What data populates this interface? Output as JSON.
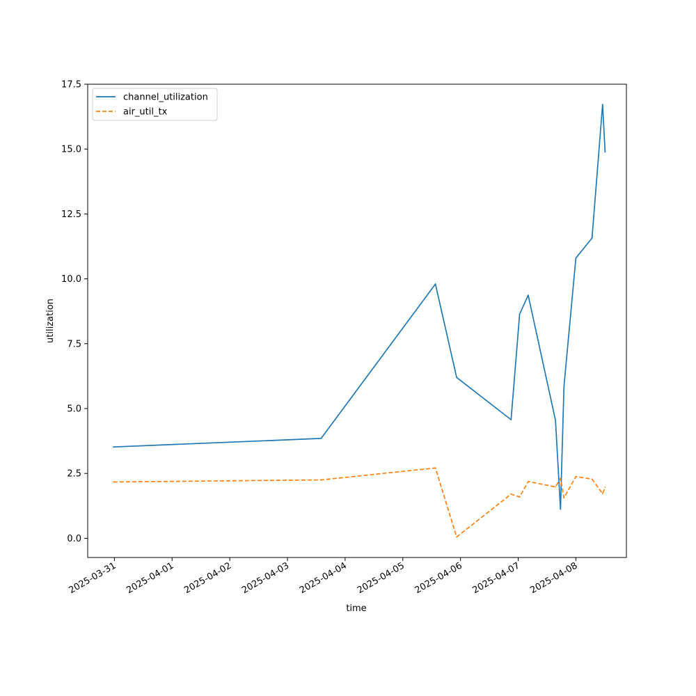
{
  "chart_data": {
    "type": "line",
    "xlabel": "time",
    "ylabel": "utilization",
    "x_range": [
      "2025-03-30 12:53",
      "2025-04-08 21:02"
    ],
    "ylim": [
      -0.74,
      17.5
    ],
    "x_ticks": [
      "2025-03-31",
      "2025-04-01",
      "2025-04-02",
      "2025-04-03",
      "2025-04-04",
      "2025-04-05",
      "2025-04-06",
      "2025-04-07",
      "2025-04-08"
    ],
    "y_ticks": [
      "0.0",
      "2.5",
      "5.0",
      "7.5",
      "10.0",
      "12.5",
      "15.0",
      "17.5"
    ],
    "grid": false,
    "legend_position": "top-left",
    "series": [
      {
        "name": "channel_utilization",
        "color": "#1f77b4",
        "style": "solid",
        "points": [
          {
            "x": "2025-03-30 23:34",
            "y": 3.52
          },
          {
            "x": "2025-04-03 14:01",
            "y": 3.85
          },
          {
            "x": "2025-04-05 13:34",
            "y": 9.8
          },
          {
            "x": "2025-04-05 22:24",
            "y": 6.2
          },
          {
            "x": "2025-04-06 21:02",
            "y": 4.57
          },
          {
            "x": "2025-04-07 00:36",
            "y": 8.64
          },
          {
            "x": "2025-04-07 04:10",
            "y": 9.37
          },
          {
            "x": "2025-04-07 15:32",
            "y": 4.55
          },
          {
            "x": "2025-04-07 17:37",
            "y": 1.12
          },
          {
            "x": "2025-04-07 19:04",
            "y": 5.85
          },
          {
            "x": "2025-04-08 00:00",
            "y": 10.8
          },
          {
            "x": "2025-04-08 06:43",
            "y": 11.57
          },
          {
            "x": "2025-04-08 11:07",
            "y": 16.72
          },
          {
            "x": "2025-04-08 12:11",
            "y": 14.89
          }
        ]
      },
      {
        "name": "air_util_tx",
        "color": "#ff7f0e",
        "style": "dashed",
        "points": [
          {
            "x": "2025-03-30 23:34",
            "y": 2.17
          },
          {
            "x": "2025-04-03 14:01",
            "y": 2.25
          },
          {
            "x": "2025-04-05 13:34",
            "y": 2.71
          },
          {
            "x": "2025-04-05 22:24",
            "y": 0.05
          },
          {
            "x": "2025-04-06 21:02",
            "y": 1.7
          },
          {
            "x": "2025-04-07 00:36",
            "y": 1.59
          },
          {
            "x": "2025-04-07 04:10",
            "y": 2.19
          },
          {
            "x": "2025-04-07 15:32",
            "y": 1.98
          },
          {
            "x": "2025-04-07 17:37",
            "y": 2.31
          },
          {
            "x": "2025-04-07 19:04",
            "y": 1.56
          },
          {
            "x": "2025-04-08 00:00",
            "y": 2.38
          },
          {
            "x": "2025-04-08 06:43",
            "y": 2.28
          },
          {
            "x": "2025-04-08 11:07",
            "y": 1.72
          },
          {
            "x": "2025-04-08 12:11",
            "y": 1.97
          }
        ]
      }
    ]
  }
}
